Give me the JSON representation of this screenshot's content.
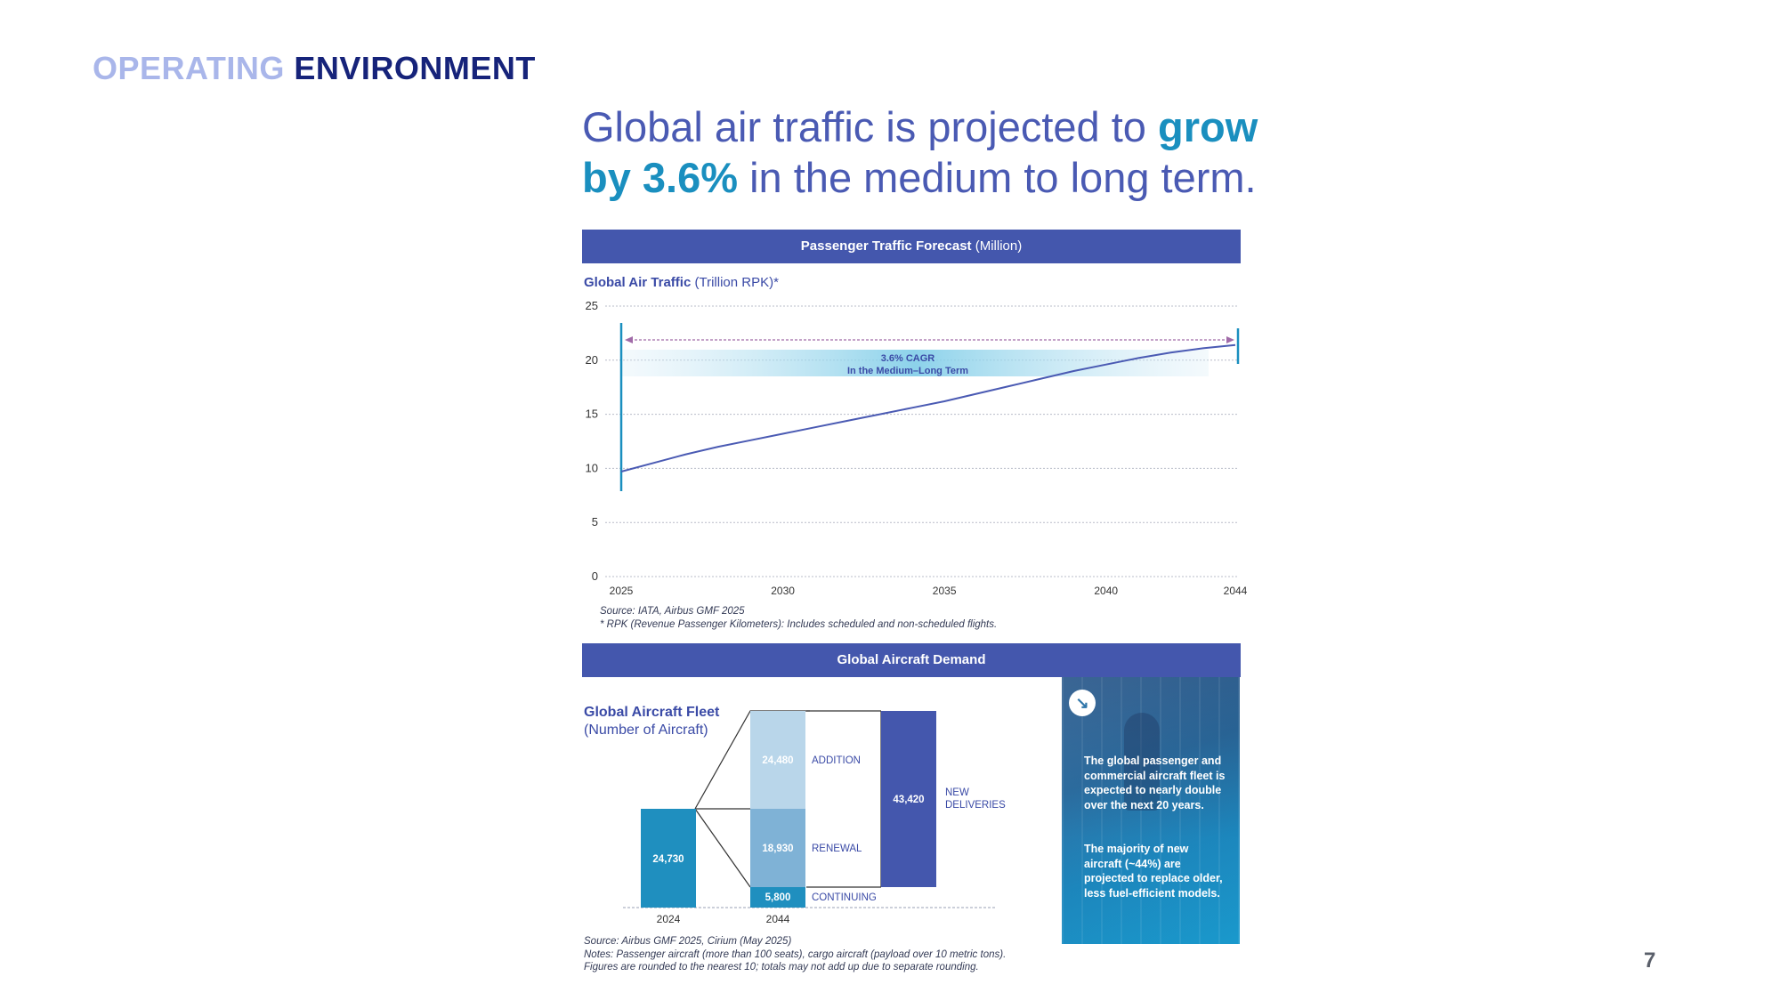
{
  "section_title": {
    "word1": "OPERATING",
    "word2": "ENVIRONMENT"
  },
  "headline": {
    "part1": "Global air traffic is projected to ",
    "bold1": "grow",
    "bold2": "by 3.6%",
    "part2": " in the medium to long term."
  },
  "traffic_panel": {
    "header_bold": "Passenger Traffic Forecast",
    "header_light": "(Million)",
    "subtitle_bold": "Global Air Traffic",
    "subtitle_light": "(Trillion RPK)*",
    "cagr_line1": "3.6% CAGR",
    "cagr_line2": "In the Medium–Long Term",
    "source": "Source: IATA, Airbus GMF 2025",
    "footnote": "* RPK (Revenue Passenger Kilometers): Includes scheduled and non-scheduled flights."
  },
  "demand_panel": {
    "header": "Global Aircraft Demand",
    "subtitle_line1": "Global Aircraft Fleet",
    "subtitle_line2": "(Number of Aircraft)",
    "source": "Source: Airbus GMF 2025, Cirium (May 2025)",
    "notes_line1": "Notes: Passenger aircraft (more than 100 seats), cargo aircraft (payload over 10 metric tons).",
    "notes_line2": "Figures are rounded to the nearest 10; totals may not add up due to separate rounding.",
    "info_text1": "The global passenger and commercial aircraft fleet is expected to nearly double over the next 20 years.",
    "info_text2": "The majority of new aircraft (~44%) are projected to replace older, less fuel-efficient models."
  },
  "page_number": "7",
  "colors": {
    "header_bar": "#4457ad",
    "line": "#4a5ab3",
    "fleet_2024": "#1f8fbf",
    "addition": "#b9d6ea",
    "renewal": "#7fb2d6",
    "continuing": "#1f8fbf",
    "new_deliveries": "#4457ad"
  },
  "chart_data": [
    {
      "type": "line",
      "title": "Passenger Traffic Forecast (Million)",
      "ylabel": "Global Air Traffic (Trillion RPK)*",
      "x": [
        2025,
        2026,
        2027,
        2028,
        2029,
        2030,
        2031,
        2032,
        2033,
        2034,
        2035,
        2036,
        2037,
        2038,
        2039,
        2040,
        2041,
        2042,
        2043,
        2044
      ],
      "series": [
        {
          "values": [
            9.7,
            10.5,
            11.3,
            12.0,
            12.6,
            13.2,
            13.8,
            14.4,
            15.0,
            15.6,
            16.2,
            16.9,
            17.6,
            18.3,
            19.0,
            19.6,
            20.2,
            20.7,
            21.1,
            21.4
          ]
        }
      ],
      "xticks": [
        2025,
        2030,
        2035,
        2040,
        2044
      ],
      "yticks": [
        0,
        5,
        10,
        15,
        20,
        25
      ],
      "ylim": [
        0,
        25
      ],
      "grid": true
    },
    {
      "type": "bar",
      "title": "Global Aircraft Demand",
      "categories": [
        "2024",
        "2044"
      ],
      "segments": [
        {
          "label": "",
          "category": "2024",
          "value": 24730,
          "color": "#1f8fbf"
        },
        {
          "label": "CONTINUING",
          "category": "2044",
          "value": 5800,
          "color": "#1f8fbf"
        },
        {
          "label": "RENEWAL",
          "category": "2044",
          "value": 18930,
          "color": "#7fb2d6"
        },
        {
          "label": "ADDITION",
          "category": "2044",
          "value": 24480,
          "color": "#b9d6ea"
        },
        {
          "label": "NEW DELIVERIES",
          "category": "",
          "value": 43420,
          "color": "#4457ad"
        }
      ],
      "value_labels": [
        "24,730",
        "5,800",
        "18,930",
        "24,480",
        "43,420"
      ],
      "new_deliveries_line1": "NEW",
      "new_deliveries_line2": "DELIVERIES"
    }
  ]
}
